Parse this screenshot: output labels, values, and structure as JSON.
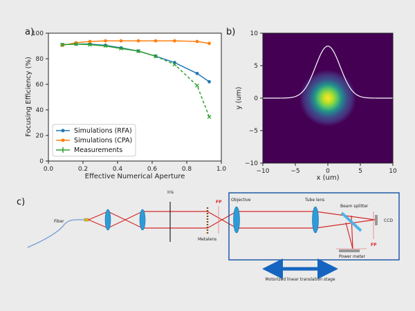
{
  "panels": {
    "a": "a)",
    "b": "b)",
    "c": "c)"
  },
  "chart_data": [
    {
      "type": "line",
      "xlabel": "Effective Numerical Aperture",
      "ylabel": "Focusing Efficiency (%)",
      "xlim": [
        0.0,
        1.0
      ],
      "ylim": [
        0,
        100
      ],
      "xticks": [
        "0.0",
        "0.2",
        "0.4",
        "0.6",
        "0.8",
        "1.0"
      ],
      "yticks": [
        "0",
        "20",
        "40",
        "60",
        "80",
        "100"
      ],
      "legend_position": "lower-left",
      "series": [
        {
          "name": "Simulations (RFA)",
          "color": "#1f77b4",
          "marker": "circle",
          "style": "solid",
          "x": [
            0.08,
            0.16,
            0.24,
            0.33,
            0.42,
            0.52,
            0.62,
            0.73,
            0.86,
            0.93
          ],
          "y": [
            91,
            91.5,
            91.5,
            90.5,
            88.5,
            86,
            82,
            77,
            68.5,
            62
          ]
        },
        {
          "name": "Simulations (CPA)",
          "color": "#ff7f0e",
          "marker": "circle",
          "style": "solid",
          "x": [
            0.08,
            0.16,
            0.24,
            0.33,
            0.42,
            0.52,
            0.62,
            0.73,
            0.86,
            0.93
          ],
          "y": [
            90.5,
            92.5,
            93.5,
            94,
            94,
            94,
            94,
            94,
            93.5,
            92
          ]
        },
        {
          "name": "Measurements",
          "color": "#2ca02c",
          "marker": "x",
          "style": "mixed",
          "x": [
            0.08,
            0.16,
            0.24,
            0.33,
            0.42,
            0.52,
            0.62,
            0.73,
            0.86,
            0.93
          ],
          "y": [
            91,
            91.5,
            91,
            90,
            88,
            86,
            82,
            75.5,
            59,
            34.5
          ]
        }
      ]
    },
    {
      "type": "heatmap",
      "xlabel": "x (um)",
      "ylabel": "y (um)",
      "xlim": [
        -10,
        10
      ],
      "ylim": [
        -10,
        10
      ],
      "xticks": [
        "−10",
        "−5",
        "0",
        "5",
        "10"
      ],
      "yticks": [
        "−10",
        "−5",
        "0",
        "5",
        "10"
      ],
      "spot_sigma_um": 1.9,
      "colormap": [
        "#440154",
        "#3b528b",
        "#21918c",
        "#5ec962",
        "#fde725"
      ],
      "profile": {
        "color": "#ffffff",
        "baseline": 0,
        "peak": 8,
        "sigma_um": 1.9
      }
    }
  ],
  "diagram": {
    "labels": {
      "fiber": "Fiber",
      "iris": "Iris",
      "fp1": "FP",
      "metalens": "Metalens",
      "objective": "Objective",
      "tube_lens": "Tube lens",
      "beam_splitter": "Beam splitter",
      "ccd": "CCD",
      "fp2": "FP",
      "power_meter": "Power meter",
      "stage": "Motorized linear translation stage"
    }
  }
}
